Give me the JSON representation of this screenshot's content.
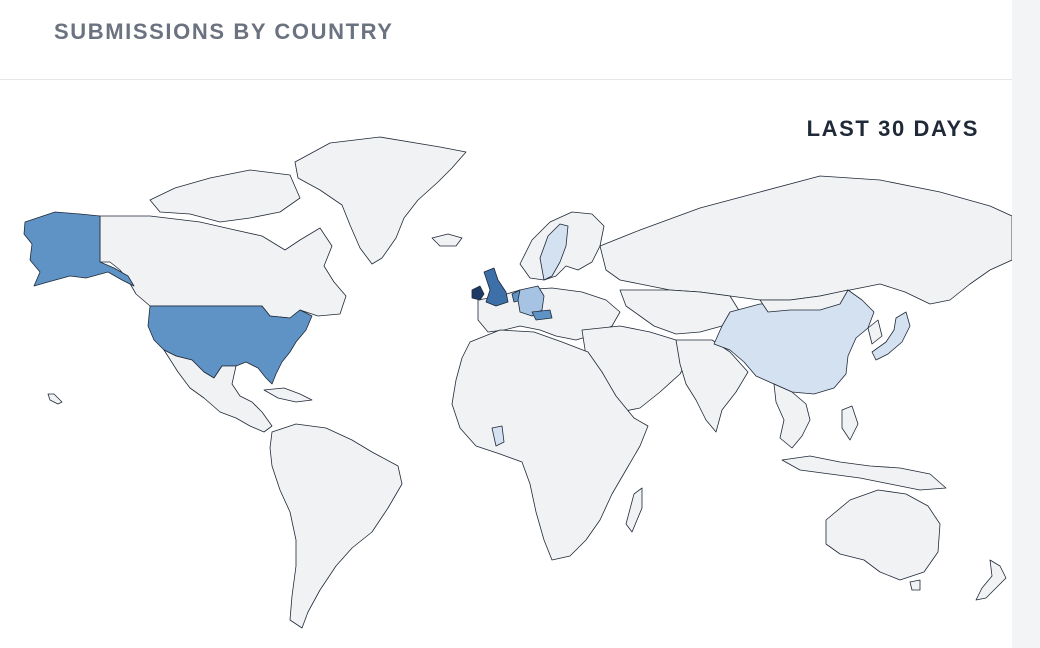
{
  "card": {
    "title": "SUBMISSIONS BY COUNTRY",
    "period": "LAST 30 DAYS"
  },
  "legend_colors": {
    "none": "#f1f2f4",
    "low": "#d3e1f1",
    "medium_low": "#a6c3e3",
    "medium": "#5f93c6",
    "high": "#3d6fa8",
    "highest": "#1e3a66"
  },
  "map": {
    "type": "choropleth",
    "regions": [
      {
        "name": "United States",
        "level": "medium"
      },
      {
        "name": "Alaska",
        "level": "medium"
      },
      {
        "name": "Canada",
        "level": "none"
      },
      {
        "name": "Greenland",
        "level": "none"
      },
      {
        "name": "Mexico",
        "level": "none"
      },
      {
        "name": "South America",
        "level": "none"
      },
      {
        "name": "Ireland",
        "level": "highest"
      },
      {
        "name": "United Kingdom",
        "level": "high"
      },
      {
        "name": "Netherlands",
        "level": "medium"
      },
      {
        "name": "Germany",
        "level": "medium_low"
      },
      {
        "name": "Austria",
        "level": "medium"
      },
      {
        "name": "Sweden",
        "level": "low"
      },
      {
        "name": "Europe (other)",
        "level": "none"
      },
      {
        "name": "Russia",
        "level": "none"
      },
      {
        "name": "China",
        "level": "low"
      },
      {
        "name": "Japan",
        "level": "low"
      },
      {
        "name": "Ghana",
        "level": "low"
      },
      {
        "name": "Africa (other)",
        "level": "none"
      },
      {
        "name": "Middle East",
        "level": "none"
      },
      {
        "name": "India",
        "level": "none"
      },
      {
        "name": "Southeast Asia",
        "level": "none"
      },
      {
        "name": "Australia",
        "level": "none"
      },
      {
        "name": "New Zealand",
        "level": "none"
      }
    ]
  }
}
